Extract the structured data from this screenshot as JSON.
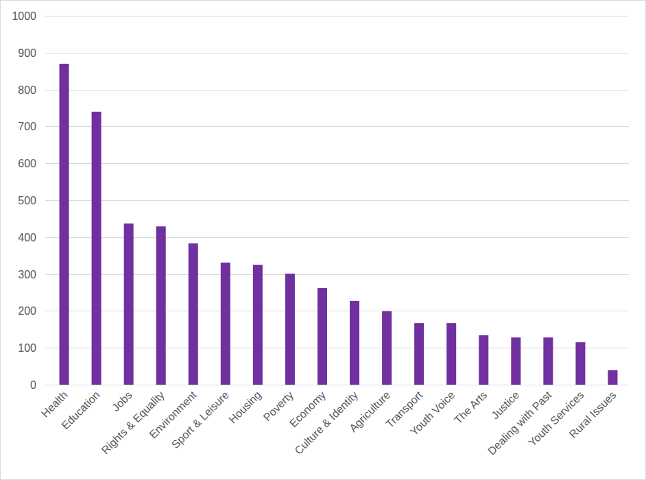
{
  "chart_data": {
    "type": "bar",
    "categories": [
      "Health",
      "Education",
      "Jobs",
      "Rights & Equality",
      "Environment",
      "Sport & Leisure",
      "Housing",
      "Poverty",
      "Economy",
      "Culture & Identity",
      "Agriculture",
      "Transport",
      "Youth Voice",
      "The Arts",
      "Justice",
      "Dealing with Past",
      "Youth Services",
      "Rural Issues"
    ],
    "values": [
      870,
      740,
      437,
      429,
      383,
      331,
      325,
      301,
      262,
      227,
      199,
      167,
      167,
      134,
      128,
      128,
      115,
      39
    ],
    "color": "#7030a0",
    "ylim": [
      0,
      1000
    ],
    "yticks": [
      0,
      100,
      200,
      300,
      400,
      500,
      600,
      700,
      800,
      900,
      1000
    ],
    "grid": true
  }
}
